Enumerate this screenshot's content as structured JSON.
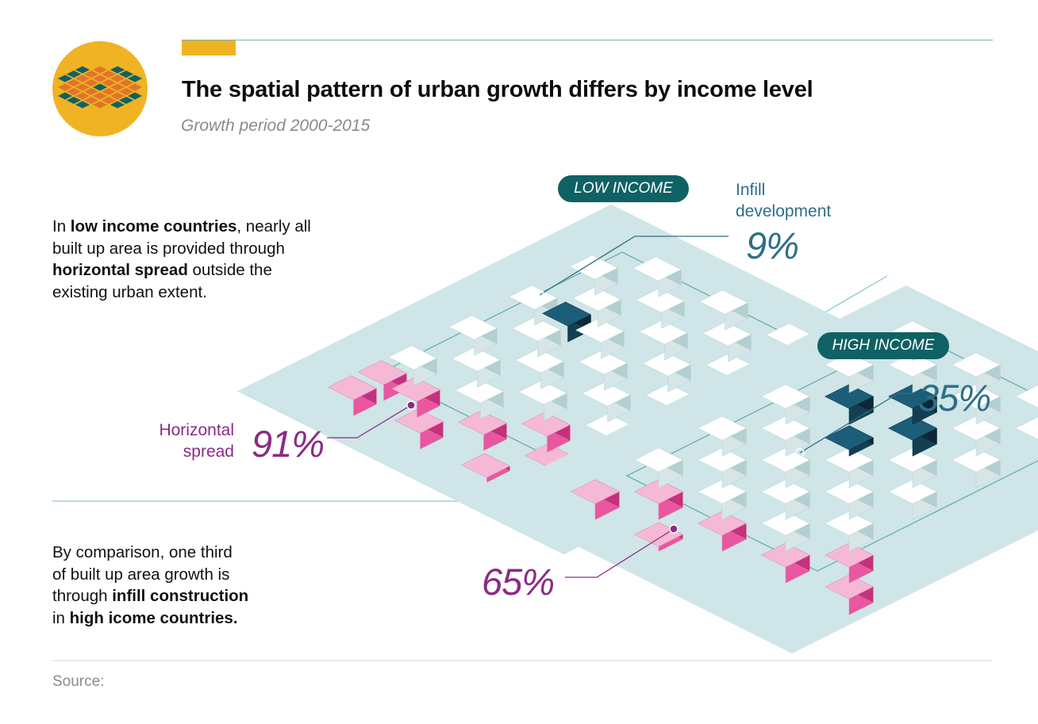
{
  "header": {
    "title": "The spatial pattern of urban growth differs by income level",
    "subtitle": "Growth period 2000-2015",
    "logo_icon": "urban-grid-logo-icon"
  },
  "low_income": {
    "tag": "LOW INCOME",
    "infill_label_line1": "Infill",
    "infill_label_line2": "development",
    "infill_value": "9%",
    "spread_label_line1": "Horizontal",
    "spread_label_line2": "spread",
    "spread_value": "91%",
    "paragraph": {
      "p1": "In ",
      "b1": "low income countries",
      "p2": ", nearly all",
      "p3": "built up area is provided through",
      "b2": "horizontal spread",
      "p4": " outside the",
      "p5": "existing urban extent."
    }
  },
  "high_income": {
    "tag": "HIGH INCOME",
    "infill_value": "35%",
    "spread_value": "65%",
    "paragraph": {
      "p1": "By comparison, one third",
      "p2": "of built up area growth is",
      "p3": "through ",
      "b1": "infill construction",
      "p4": "in ",
      "b2": "high icome countries."
    }
  },
  "footer": {
    "source": "Source:"
  },
  "colors": {
    "teal_dark": "#0f6164",
    "teal_label": "#2e6f88",
    "purple": "#8b2b84",
    "pink": "#e8579f",
    "infill_block": "#1c5e7a",
    "existing_block": "#eef5f5",
    "grid_plate": "#cfe5e7",
    "accent": "#f0b323"
  }
}
